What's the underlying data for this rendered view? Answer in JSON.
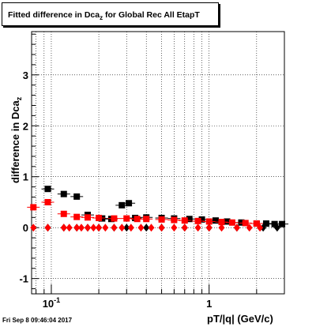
{
  "title": {
    "main": "Fitted difference in Dca",
    "sub": "z",
    "rest": " for Global Rec All EtapT"
  },
  "footer_timestamp": "Fri Sep  8 09:46:04 2017",
  "chart_data": {
    "type": "scatter",
    "xlabel": "pT/|q| (GeV/c)",
    "ylabel_main": "difference in Dca",
    "ylabel_sub": "z",
    "xscale": "log",
    "xlim": [
      0.075,
      3.0
    ],
    "ylim": [
      -1.3,
      3.85
    ],
    "grid": true,
    "x_tick_labels": [
      {
        "value": 0.1,
        "base": "10",
        "exp": "-1"
      },
      {
        "value": 1,
        "base": "1",
        "exp": ""
      }
    ],
    "y_ticks": [
      -1,
      0,
      1,
      2,
      3
    ],
    "series": [
      {
        "color": "#000000",
        "marker": "square",
        "points": [
          {
            "x": 0.095,
            "y": 0.76
          },
          {
            "x": 0.12,
            "y": 0.66
          },
          {
            "x": 0.145,
            "y": 0.61
          },
          {
            "x": 0.17,
            "y": 0.25
          },
          {
            "x": 0.21,
            "y": 0.18
          },
          {
            "x": 0.24,
            "y": 0.17
          },
          {
            "x": 0.28,
            "y": 0.44
          },
          {
            "x": 0.31,
            "y": 0.48
          },
          {
            "x": 0.34,
            "y": 0.19
          },
          {
            "x": 0.4,
            "y": 0.2
          },
          {
            "x": 0.5,
            "y": 0.19
          },
          {
            "x": 0.6,
            "y": 0.18
          },
          {
            "x": 0.75,
            "y": 0.17
          },
          {
            "x": 0.9,
            "y": 0.16
          },
          {
            "x": 1.1,
            "y": 0.14
          },
          {
            "x": 1.3,
            "y": 0.12
          },
          {
            "x": 1.6,
            "y": 0.1
          },
          {
            "x": 2.0,
            "y": 0.08
          },
          {
            "x": 2.3,
            "y": 0.08
          },
          {
            "x": 2.6,
            "y": 0.07
          },
          {
            "x": 2.9,
            "y": 0.07
          }
        ]
      },
      {
        "color": "#ff0000",
        "marker": "square",
        "points": [
          {
            "x": 0.077,
            "y": 0.4
          },
          {
            "x": 0.095,
            "y": 0.5
          },
          {
            "x": 0.12,
            "y": 0.27
          },
          {
            "x": 0.145,
            "y": 0.21
          },
          {
            "x": 0.17,
            "y": 0.2
          },
          {
            "x": 0.2,
            "y": 0.19
          },
          {
            "x": 0.25,
            "y": 0.18
          },
          {
            "x": 0.3,
            "y": 0.18
          },
          {
            "x": 0.35,
            "y": 0.17
          },
          {
            "x": 0.4,
            "y": 0.17
          },
          {
            "x": 0.5,
            "y": 0.16
          },
          {
            "x": 0.6,
            "y": 0.15
          },
          {
            "x": 0.7,
            "y": 0.14
          },
          {
            "x": 0.85,
            "y": 0.13
          },
          {
            "x": 1.0,
            "y": 0.12
          },
          {
            "x": 1.2,
            "y": 0.11
          },
          {
            "x": 1.4,
            "y": 0.1
          },
          {
            "x": 1.7,
            "y": 0.09
          },
          {
            "x": 2.0,
            "y": 0.08
          }
        ]
      },
      {
        "color": "#000000",
        "marker": "diamond",
        "points": [
          {
            "x": 0.095,
            "y": 0.0
          },
          {
            "x": 0.12,
            "y": 0.0
          },
          {
            "x": 0.145,
            "y": 0.0
          },
          {
            "x": 0.17,
            "y": 0.0
          },
          {
            "x": 0.2,
            "y": 0.0
          },
          {
            "x": 0.25,
            "y": 0.0
          },
          {
            "x": 0.3,
            "y": 0.0
          },
          {
            "x": 0.4,
            "y": 0.0
          },
          {
            "x": 0.5,
            "y": 0.0
          },
          {
            "x": 0.7,
            "y": 0.0
          },
          {
            "x": 1.0,
            "y": 0.0
          },
          {
            "x": 1.5,
            "y": 0.0
          },
          {
            "x": 2.2,
            "y": 0.0
          },
          {
            "x": 2.7,
            "y": 0.0
          }
        ]
      },
      {
        "color": "#ff0000",
        "marker": "diamond",
        "points": [
          {
            "x": 0.077,
            "y": 0.0
          },
          {
            "x": 0.095,
            "y": 0.0
          },
          {
            "x": 0.12,
            "y": 0.0
          },
          {
            "x": 0.13,
            "y": 0.0
          },
          {
            "x": 0.145,
            "y": 0.0
          },
          {
            "x": 0.155,
            "y": 0.0
          },
          {
            "x": 0.17,
            "y": 0.0
          },
          {
            "x": 0.185,
            "y": 0.0
          },
          {
            "x": 0.2,
            "y": 0.0
          },
          {
            "x": 0.22,
            "y": 0.0
          },
          {
            "x": 0.25,
            "y": 0.0
          },
          {
            "x": 0.28,
            "y": 0.0
          },
          {
            "x": 0.32,
            "y": 0.0
          },
          {
            "x": 0.37,
            "y": 0.0
          },
          {
            "x": 0.43,
            "y": 0.0
          },
          {
            "x": 0.5,
            "y": 0.0
          },
          {
            "x": 0.6,
            "y": 0.0
          },
          {
            "x": 0.7,
            "y": 0.0
          },
          {
            "x": 0.85,
            "y": 0.0
          },
          {
            "x": 1.0,
            "y": 0.0
          },
          {
            "x": 1.2,
            "y": 0.0
          },
          {
            "x": 1.5,
            "y": 0.0
          },
          {
            "x": 1.8,
            "y": 0.0
          },
          {
            "x": 2.1,
            "y": 0.0
          }
        ]
      }
    ]
  }
}
